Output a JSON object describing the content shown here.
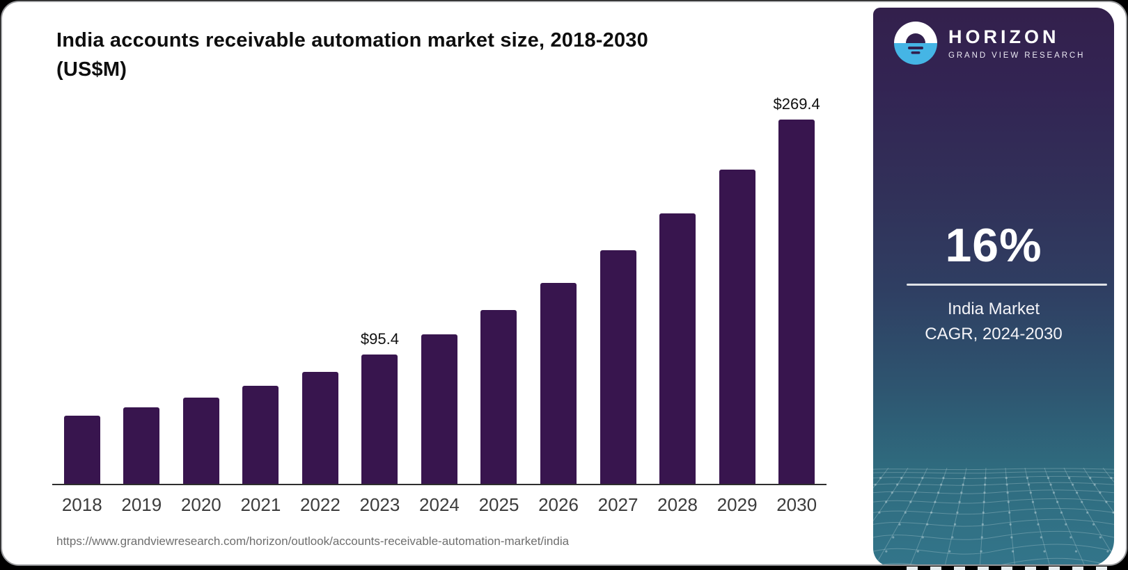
{
  "page": {
    "frame_color": "#000000",
    "card_color": "#FFFFFF"
  },
  "card": {
    "title_line1": "India accounts receivable automation market size, 2018-2030",
    "title_line2": "(US$M)",
    "source_url": "https://www.grandviewresearch.com/horizon/outlook/accounts-receivable-automation-market/india"
  },
  "chart_data": {
    "type": "bar",
    "title": "India accounts receivable automation market size, 2018-2030 (US$M)",
    "categories": [
      "2018",
      "2019",
      "2020",
      "2021",
      "2022",
      "2023",
      "2024",
      "2025",
      "2026",
      "2027",
      "2028",
      "2029",
      "2030"
    ],
    "values": [
      50.5,
      56.5,
      63.5,
      72.5,
      82.8,
      95.4,
      110.6,
      128.3,
      148.8,
      172.6,
      200.2,
      232.2,
      269.4
    ],
    "bar_labels": [
      "",
      "",
      "",
      "",
      "",
      "$95.4",
      "",
      "",
      "",
      "",
      "",
      "",
      "$269.4"
    ],
    "ylim": [
      0,
      280
    ],
    "xlabel": "",
    "ylabel": "",
    "grid": false,
    "legend_position": "none",
    "bar_color": "#38154E",
    "axis_color": "#2E2E2E",
    "tick_label_color": "#3C3C3C"
  },
  "sidebar": {
    "brand": {
      "name": "HORIZON",
      "tagline": "GRAND VIEW RESEARCH",
      "logo_icon": "sun-over-horizon",
      "logo_blue": "#45B5E5",
      "logo_dark": "#32204D"
    },
    "stat": {
      "value": "16%",
      "label_line1": "India Market",
      "label_line2": "CAGR, 2024-2030"
    },
    "colors": {
      "gradient_top": "#33204C",
      "gradient_mid": "#2F3E62",
      "gradient_bottom": "#33758A",
      "mesh_line": "#C9DDE2"
    }
  }
}
